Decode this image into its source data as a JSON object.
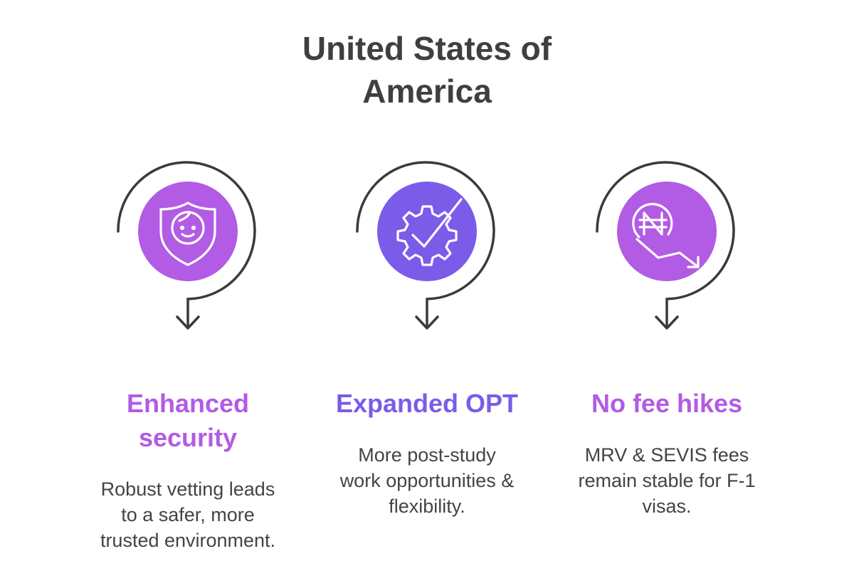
{
  "title": {
    "line1": "United States of",
    "line2": "America"
  },
  "items": [
    {
      "heading_lines": [
        "Enhanced",
        "security"
      ],
      "desc_lines": [
        "Robust vetting leads",
        "to a safer, more",
        "trusted environment."
      ],
      "color": "#b25be4",
      "icon": "shield-face-icon"
    },
    {
      "heading_lines": [
        "Expanded OPT"
      ],
      "desc_lines": [
        "More post-study",
        "work opportunities &",
        "flexibility."
      ],
      "color": "#7a5ce9",
      "icon": "gear-check-icon"
    },
    {
      "heading_lines": [
        "No fee hikes"
      ],
      "desc_lines": [
        "MRV & SEVIS fees",
        "remain stable for F-1",
        "visas."
      ],
      "color": "#b25be4",
      "icon": "naira-coin-down-icon"
    }
  ],
  "colors": {
    "text": "#3f3f3f",
    "arrow": "#3a3a3a"
  }
}
